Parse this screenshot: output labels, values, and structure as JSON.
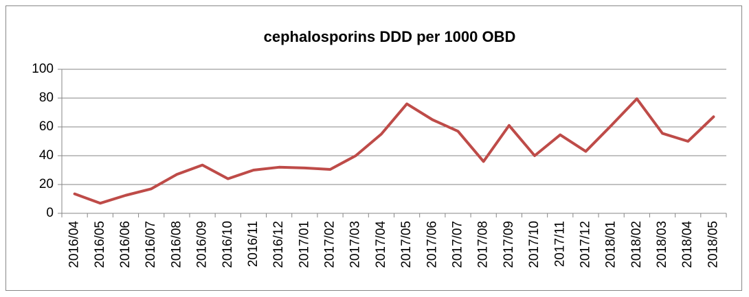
{
  "chart_data": {
    "type": "line",
    "title": "cephalosporins DDD per 1000 OBD",
    "categories": [
      "2016/04",
      "2016/05",
      "2016/06",
      "2016/07",
      "2016/08",
      "2016/09",
      "2016/10",
      "2016/11",
      "2016/12",
      "2017/01",
      "2017/02",
      "2017/03",
      "2017/04",
      "2017/05",
      "2017/06",
      "2017/07",
      "2017/08",
      "2017/09",
      "2017/10",
      "2017/11",
      "2017/12",
      "2018/01",
      "2018/02",
      "2018/03",
      "2018/04",
      "2018/05"
    ],
    "series": [
      {
        "color": "#be4b48",
        "values": [
          13.5,
          7,
          12.5,
          17,
          27,
          33.5,
          24,
          30,
          32,
          31.5,
          30.5,
          40,
          55,
          76,
          65,
          57,
          36,
          61,
          40,
          54.5,
          43,
          61,
          79.5,
          55.5,
          50,
          67
        ]
      }
    ],
    "ylim": [
      0,
      100
    ],
    "yticks": [
      0,
      20,
      40,
      60,
      80,
      100
    ],
    "grid": true
  }
}
